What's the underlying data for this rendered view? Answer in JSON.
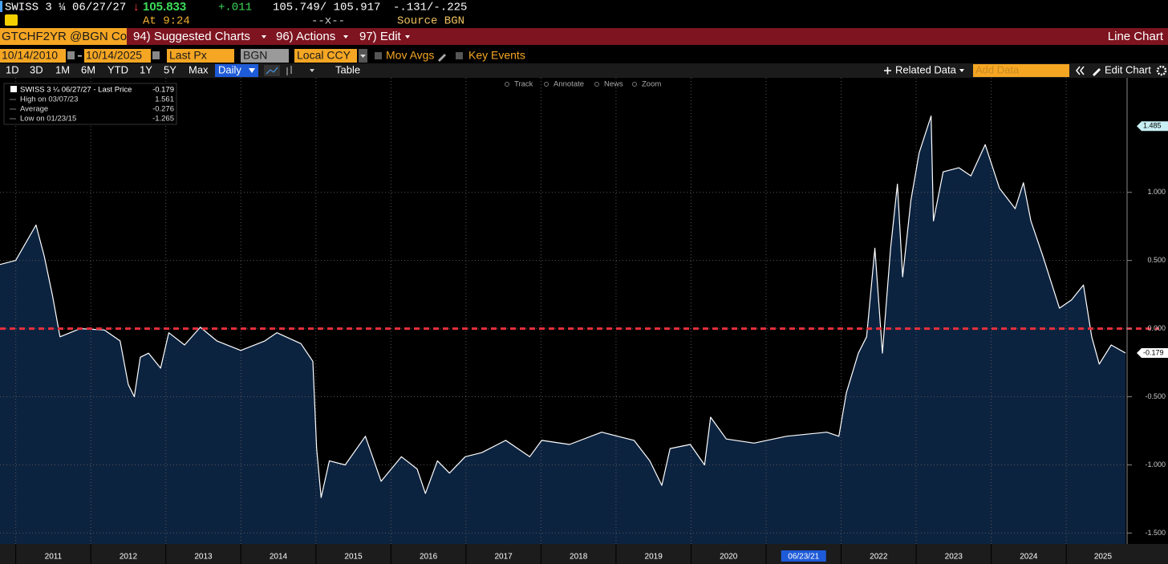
{
  "header": {
    "security": "SWISS 3 ¼ 06/27/27",
    "arrow": "↓",
    "price": "105.833",
    "change": "+.011",
    "bid_ask": "105.749/ 105.917",
    "spread": "-.131/-.225",
    "time": "At 9:24",
    "cross": "--x--",
    "source": "Source BGN"
  },
  "menu": {
    "ticker": "GTCHF2YR @BGN Co",
    "items": [
      "94) Suggested Charts",
      "96) Actions",
      "97) Edit"
    ],
    "view": "Line Chart"
  },
  "settings": {
    "start": "10/14/2010",
    "end": "10/14/2025",
    "field": "Last Px",
    "source": "BGN",
    "currency": "Local CCY",
    "options": [
      "Mov Avgs",
      "Key Events"
    ]
  },
  "toolbar": {
    "ranges": [
      "1D",
      "3D",
      "1M",
      "6M",
      "YTD",
      "1Y",
      "5Y",
      "Max"
    ],
    "period": "Daily",
    "table": "Table",
    "related": "Related Data",
    "add": "Add Data",
    "edit": "Edit Chart",
    "tools": [
      "Track",
      "Annotate",
      "News",
      "Zoom"
    ]
  },
  "chart_data": {
    "type": "area",
    "legend": {
      "title": "SWISS 3 ¼ 06/27/27 - Last Price",
      "last": "-0.179",
      "rows": [
        [
          "High on 03/07/23",
          "1.561"
        ],
        [
          "Average",
          "-0.276"
        ],
        [
          "Low on 01/23/15",
          "-1.265"
        ]
      ]
    },
    "x": [
      2010.79,
      2011.0,
      2011.27,
      2011.38,
      2011.49,
      2011.59,
      2011.86,
      2012.18,
      2012.39,
      2012.5,
      2012.58,
      2012.66,
      2012.77,
      2012.93,
      2013.04,
      2013.25,
      2013.46,
      2013.68,
      2014.0,
      2014.32,
      2014.48,
      2014.8,
      2014.96,
      2015.01,
      2015.07,
      2015.18,
      2015.39,
      2015.66,
      2015.87,
      2016.14,
      2016.35,
      2016.46,
      2016.62,
      2016.78,
      2016.99,
      2017.21,
      2017.53,
      2017.85,
      2018.01,
      2018.38,
      2018.81,
      2019.24,
      2019.45,
      2019.61,
      2019.72,
      2019.99,
      2020.18,
      2020.26,
      2020.47,
      2020.84,
      2021.27,
      2021.81,
      2021.97,
      2022.07,
      2022.23,
      2022.34,
      2022.45,
      2022.55,
      2022.66,
      2022.75,
      2022.82,
      2022.93,
      2023.04,
      2023.2,
      2023.23,
      2023.36,
      2023.57,
      2023.73,
      2023.92,
      2024.11,
      2024.32,
      2024.43,
      2024.53,
      2024.69,
      2024.91,
      2025.07,
      2025.23,
      2025.34,
      2025.44,
      2025.6,
      2025.79
    ],
    "values": [
      0.47,
      0.5,
      0.76,
      0.53,
      0.24,
      -0.06,
      0.0,
      -0.01,
      -0.09,
      -0.41,
      -0.5,
      -0.21,
      -0.18,
      -0.29,
      -0.03,
      -0.12,
      0.01,
      -0.09,
      -0.16,
      -0.09,
      -0.03,
      -0.11,
      -0.24,
      -0.88,
      -1.24,
      -0.97,
      -1.0,
      -0.79,
      -1.12,
      -0.94,
      -1.03,
      -1.21,
      -0.97,
      -1.06,
      -0.94,
      -0.91,
      -0.82,
      -0.94,
      -0.82,
      -0.85,
      -0.76,
      -0.82,
      -0.97,
      -1.15,
      -0.88,
      -0.85,
      -1.0,
      -0.65,
      -0.81,
      -0.84,
      -0.79,
      -0.76,
      -0.79,
      -0.47,
      -0.18,
      -0.06,
      0.59,
      -0.18,
      0.59,
      1.06,
      0.38,
      0.94,
      1.29,
      1.56,
      0.79,
      1.15,
      1.18,
      1.12,
      1.35,
      1.03,
      0.88,
      1.07,
      0.79,
      0.53,
      0.15,
      0.21,
      0.32,
      -0.06,
      -0.26,
      -0.12,
      -0.179
    ],
    "line_color": "#ffffff",
    "fill_color": "#0c2340",
    "xlim": [
      2010.79,
      2025.79
    ],
    "xticks": [
      {
        "value": 2011,
        "label": "2011"
      },
      {
        "value": 2012,
        "label": "2012"
      },
      {
        "value": 2013,
        "label": "2013"
      },
      {
        "value": 2014,
        "label": "2014"
      },
      {
        "value": 2015,
        "label": "2015"
      },
      {
        "value": 2016,
        "label": "2016"
      },
      {
        "value": 2017,
        "label": "2017"
      },
      {
        "value": 2018,
        "label": "2018"
      },
      {
        "value": 2019,
        "label": "2019"
      },
      {
        "value": 2020,
        "label": "2020"
      },
      {
        "value": 2021,
        "label": "06/23/21"
      },
      {
        "value": 2022,
        "label": "2022"
      },
      {
        "value": 2023,
        "label": "2023"
      },
      {
        "value": 2024,
        "label": "2024"
      },
      {
        "value": 2025,
        "label": "2025"
      }
    ],
    "ylim": [
      -1.58,
      1.84
    ],
    "yticks": [
      {
        "value": 1,
        "label": "1.000"
      },
      {
        "value": 0.5,
        "label": "0.500"
      },
      {
        "value": 0,
        "label": "0.000"
      },
      {
        "value": -0.5,
        "label": "-0.500"
      },
      {
        "value": -1,
        "label": "-1.000"
      },
      {
        "value": -1.5,
        "label": "-1.500"
      }
    ],
    "markers": [
      1.485,
      -0.179
    ],
    "reference_line": 0,
    "reference_color": "#e8303c",
    "grid": true
  }
}
